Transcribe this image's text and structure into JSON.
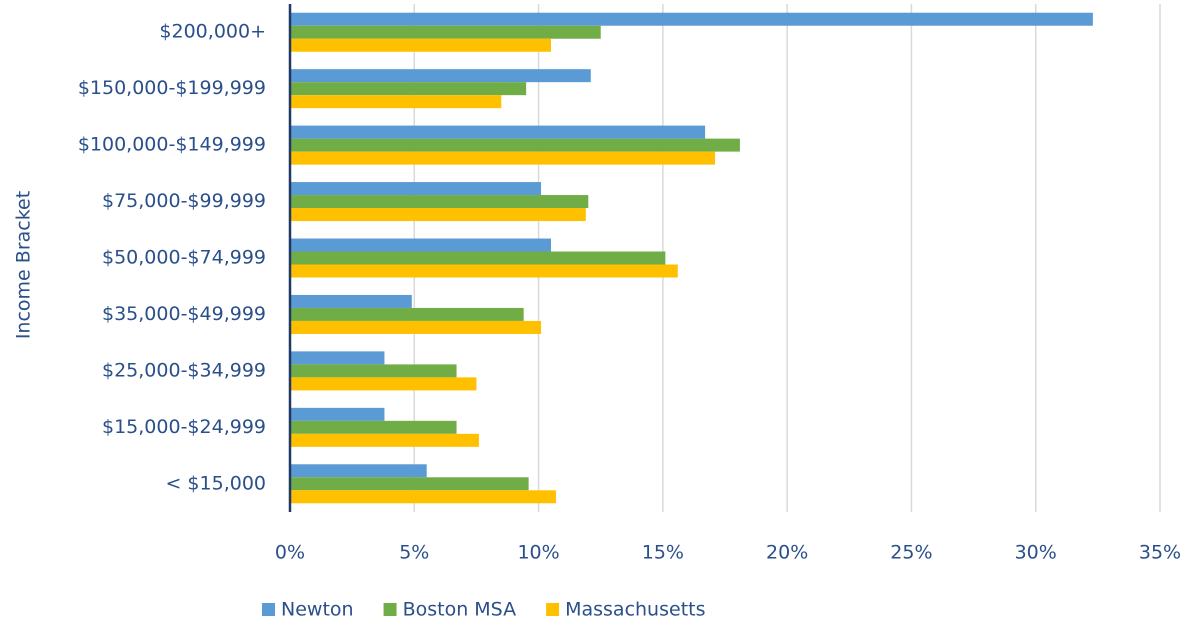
{
  "chart_data": {
    "type": "hbar",
    "ylabel": "Income Bracket",
    "categories": [
      "$200,000+",
      "$150,000-$199,999",
      "$100,000-$149,999",
      "$75,000-$99,999",
      "$50,000-$74,999",
      "$35,000-$49,999",
      "$25,000-$34,999",
      "$15,000-$24,999",
      "< $15,000"
    ],
    "series": [
      {
        "name": "Newton",
        "color": "#5b9bd5",
        "values": [
          32.3,
          12.1,
          16.7,
          10.1,
          10.5,
          4.9,
          3.8,
          3.8,
          5.5
        ]
      },
      {
        "name": "Boston MSA",
        "color": "#70ad47",
        "values": [
          12.5,
          9.5,
          18.1,
          12.0,
          15.1,
          9.4,
          6.7,
          6.7,
          9.6
        ]
      },
      {
        "name": "Massachusetts",
        "color": "#ffc000",
        "values": [
          10.5,
          8.5,
          17.1,
          11.9,
          15.6,
          10.1,
          7.5,
          7.6,
          10.7
        ]
      }
    ],
    "xlim": [
      0,
      35
    ],
    "xticks": [
      {
        "value": 0,
        "label": "0%"
      },
      {
        "value": 5,
        "label": "5%"
      },
      {
        "value": 10,
        "label": "10%"
      },
      {
        "value": 15,
        "label": "15%"
      },
      {
        "value": 20,
        "label": "20%"
      },
      {
        "value": 25,
        "label": "25%"
      },
      {
        "value": 30,
        "label": "30%"
      },
      {
        "value": 35,
        "label": "35%"
      }
    ],
    "grid": true,
    "legend": "bottom"
  }
}
